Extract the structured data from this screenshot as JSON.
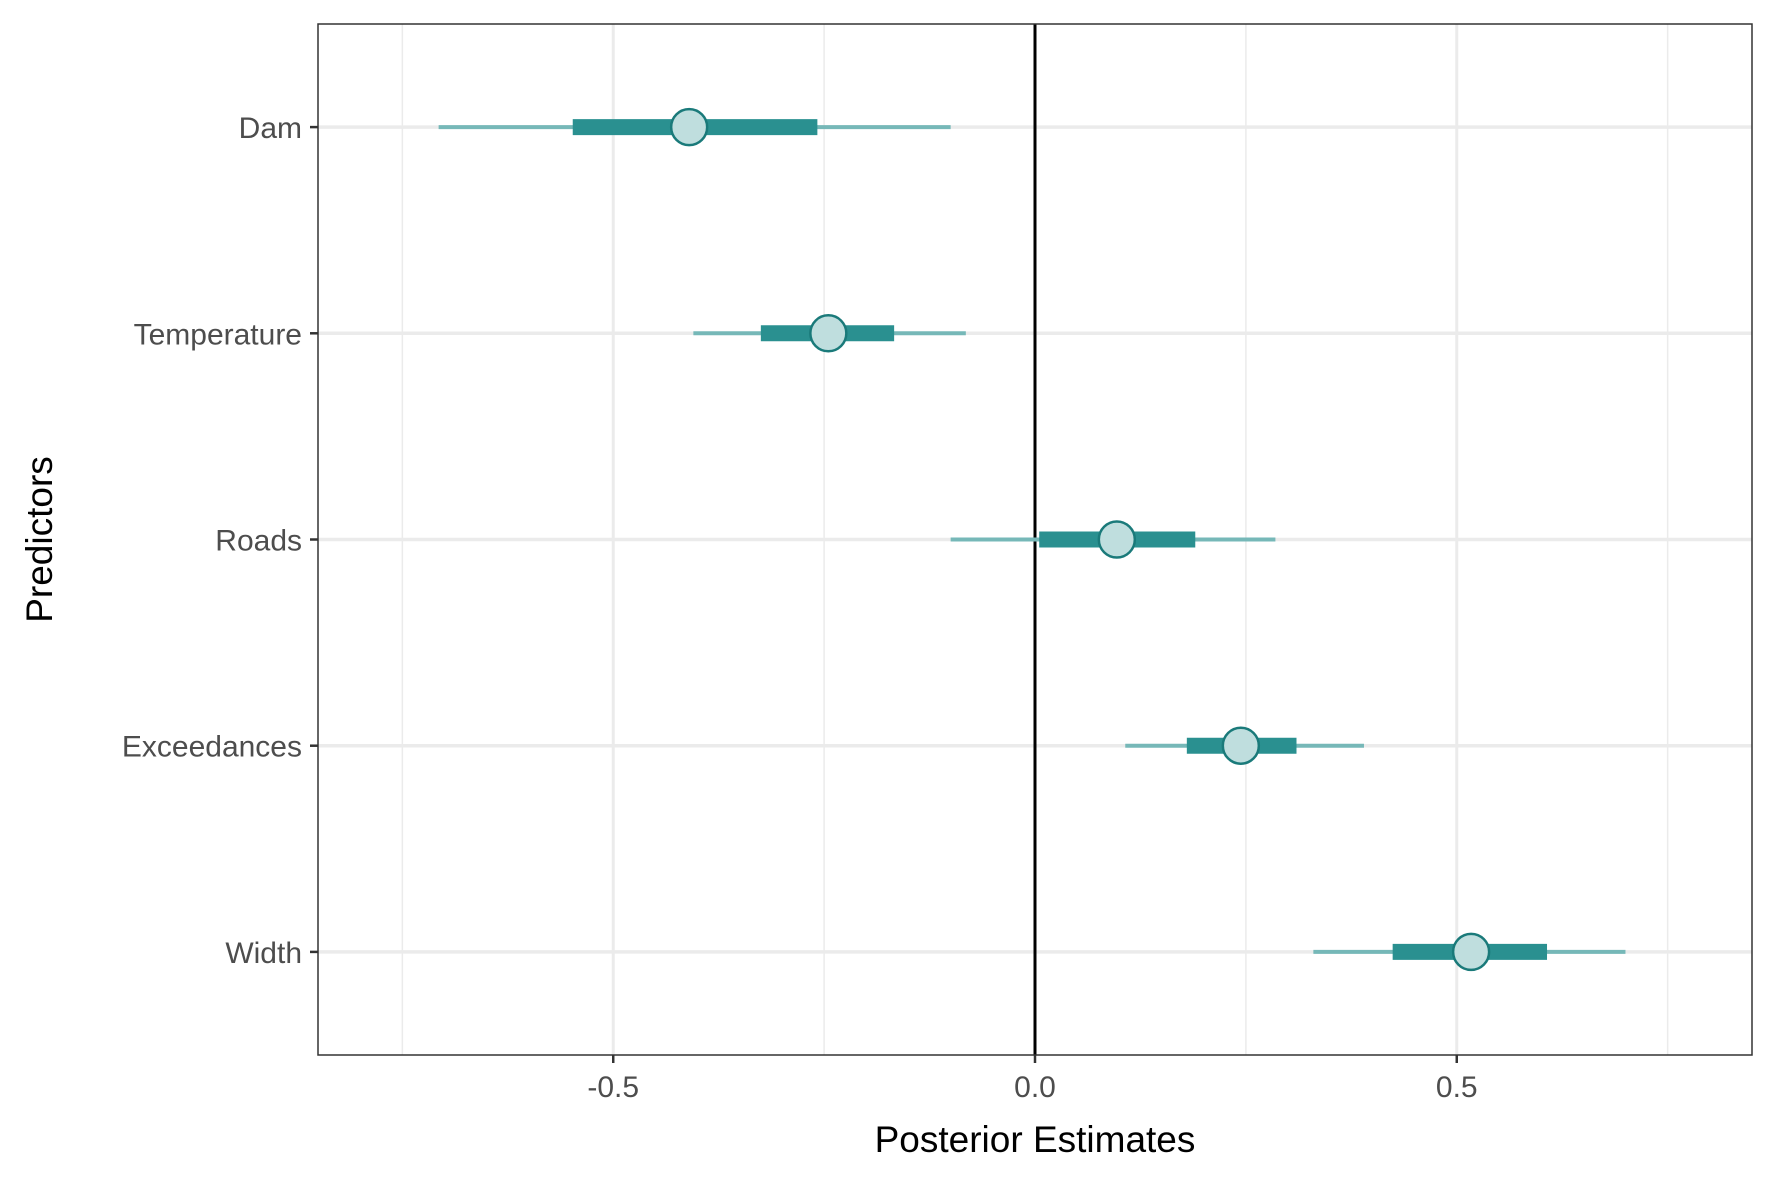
{
  "chart_data": {
    "type": "scatter",
    "subtype": "interval-plot",
    "title": "",
    "xlabel": "Posterior Estimates",
    "ylabel": "Predictors",
    "xlim": [
      -0.85,
      0.85
    ],
    "xticks": [
      -0.5,
      0.0,
      0.5
    ],
    "xtick_labels": [
      "-0.5",
      "0.0",
      "0.5"
    ],
    "categories": [
      "Dam",
      "Temperature",
      "Roads",
      "Exceedances",
      "Width"
    ],
    "series": [
      {
        "estimate": [
          -0.41,
          -0.245,
          0.097,
          0.244,
          0.517
        ],
        "inner_low": [
          -0.548,
          -0.325,
          0.005,
          0.18,
          0.424
        ],
        "inner_high": [
          -0.258,
          -0.167,
          0.19,
          0.31,
          0.607
        ],
        "outer_low": [
          -0.707,
          -0.405,
          -0.1,
          0.107,
          0.33
        ],
        "outer_high": [
          -0.1,
          -0.082,
          0.285,
          0.39,
          0.7
        ]
      }
    ],
    "reference_line_x": 0,
    "grid": true,
    "colors": {
      "inner_interval": "#2a9090",
      "outer_interval": "#76b8b8",
      "point_fill": "#bfdede",
      "point_stroke": "#1a7a7a",
      "grid": "#ebebeb",
      "reference_line": "#000000"
    }
  }
}
